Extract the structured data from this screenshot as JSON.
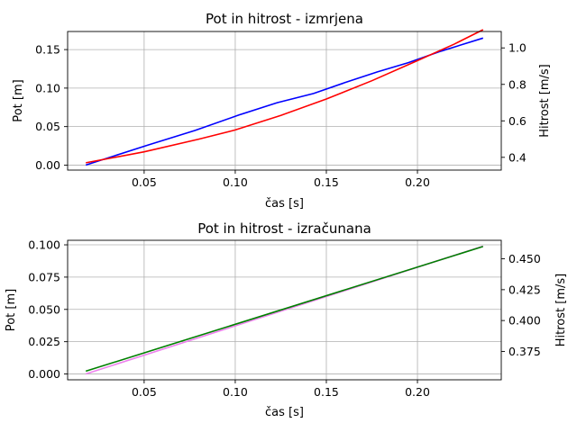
{
  "chart_data": [
    {
      "type": "line",
      "title": "Pot in hitrost - izmrjena",
      "xlabel": "čas [s]",
      "ylabel": "Pot [m]",
      "ylabel_right": "Hitrost [m/s]",
      "xlim": [
        0.008,
        0.246
      ],
      "ylim": [
        -0.0065,
        0.1735
      ],
      "ylim_right": [
        0.33,
        1.09
      ],
      "xticks": [
        0.05,
        0.1,
        0.15,
        0.2
      ],
      "xtick_labels": [
        "0.05",
        "0.10",
        "0.15",
        "0.20"
      ],
      "yticks": [
        0.0,
        0.05,
        0.1,
        0.15
      ],
      "ytick_labels": [
        "0.00",
        "0.05",
        "0.10",
        "0.15"
      ],
      "yticks_right": [
        0.4,
        0.6,
        0.8,
        1.0
      ],
      "ytick_labels_right": [
        "0.4",
        "0.6",
        "0.8",
        "1.0"
      ],
      "grid": true,
      "series": [
        {
          "axis": "left",
          "color": "#0000ff",
          "x": [
            0.018,
            0.052,
            0.078,
            0.102,
            0.123,
            0.143,
            0.16,
            0.178,
            0.195,
            0.213,
            0.236
          ],
          "y": [
            0.0,
            0.026,
            0.045,
            0.065,
            0.081,
            0.093,
            0.107,
            0.121,
            0.133,
            0.148,
            0.165
          ]
        },
        {
          "axis": "right",
          "color": "#ff0000",
          "x": [
            0.018,
            0.05,
            0.08,
            0.1,
            0.125,
            0.15,
            0.175,
            0.2,
            0.22,
            0.236
          ],
          "y": [
            0.37,
            0.43,
            0.5,
            0.55,
            0.63,
            0.72,
            0.82,
            0.93,
            1.02,
            1.1
          ]
        }
      ]
    },
    {
      "type": "line",
      "title": "Pot in hitrost - izračunana",
      "xlabel": "čas [s]",
      "ylabel": "Pot [m]",
      "ylabel_right": "Hitrost [m/s]",
      "xlim": [
        0.008,
        0.246
      ],
      "ylim": [
        -0.0045,
        0.1035
      ],
      "ylim_right": [
        0.352,
        0.465
      ],
      "xticks": [
        0.05,
        0.1,
        0.15,
        0.2
      ],
      "xtick_labels": [
        "0.05",
        "0.10",
        "0.15",
        "0.20"
      ],
      "yticks": [
        0.0,
        0.025,
        0.05,
        0.075,
        0.1
      ],
      "ytick_labels": [
        "0.000",
        "0.025",
        "0.050",
        "0.075",
        "0.100"
      ],
      "yticks_right": [
        0.375,
        0.4,
        0.425,
        0.45
      ],
      "ytick_labels_right": [
        "0.375",
        "0.400",
        "0.425",
        "0.450"
      ],
      "grid": true,
      "series": [
        {
          "axis": "left",
          "color": "#ee82ee",
          "x": [
            0.018,
            0.236
          ],
          "y": [
            0.0,
            0.099
          ]
        },
        {
          "axis": "right",
          "color": "#008000",
          "x": [
            0.018,
            0.236
          ],
          "y": [
            0.359,
            0.46
          ]
        }
      ]
    }
  ]
}
